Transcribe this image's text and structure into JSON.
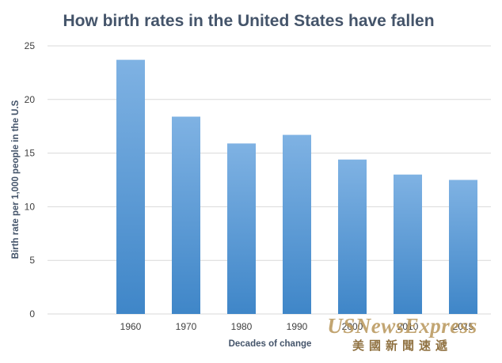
{
  "chart_data": {
    "type": "bar",
    "title": "How birth rates in the United States have fallen",
    "xlabel": "Decades of change",
    "ylabel": "Birth rate per 1,000 people in the U.S",
    "categories": [
      "",
      "1960",
      "1970",
      "1980",
      "1990",
      "2000",
      "2010",
      "2015"
    ],
    "values": [
      null,
      23.7,
      18.4,
      15.9,
      16.7,
      14.4,
      13.0,
      12.5
    ],
    "ylim": [
      0,
      25
    ],
    "yticks": [
      0,
      5,
      10,
      15,
      20,
      25
    ],
    "grid": true,
    "legend": "none",
    "colors": {
      "bar": "#5b9bd5",
      "bar_light": "#7fb2e3",
      "bar_dark": "#3f86c8",
      "grid": "#d9d9d9",
      "title": "#44546a"
    }
  },
  "watermark": {
    "line1": "USNewsExpress",
    "line2": "美國新聞速遞"
  }
}
